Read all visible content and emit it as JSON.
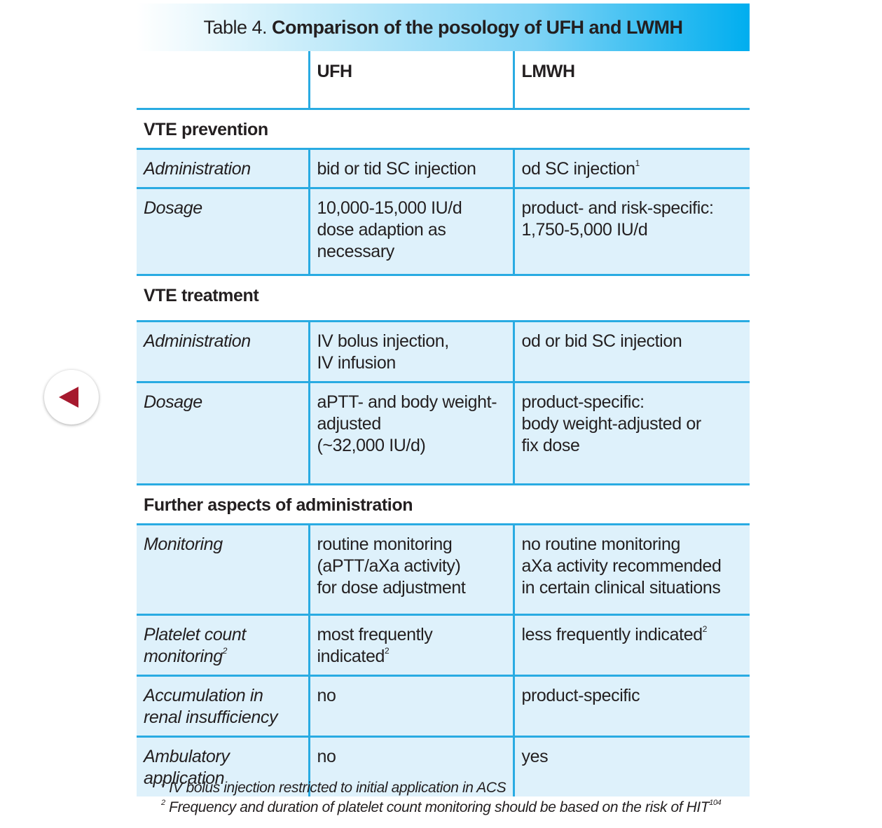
{
  "title": {
    "prefix": "Table 4.",
    "main": "Comparison of the posology of UFH and LWMH"
  },
  "columns": {
    "col1": "",
    "col2": "UFH",
    "col3": "LMWH"
  },
  "sections": {
    "prevention": {
      "heading": "VTE prevention",
      "admin": {
        "label": "Administration",
        "ufh": "bid or tid SC injection",
        "lmwh": "od SC injection",
        "lmwh_sup": "1"
      },
      "dosage": {
        "label": "Dosage",
        "ufh": [
          "10,000-15,000 IU/d",
          "dose adaption as",
          "necessary"
        ],
        "lmwh": [
          "product- and risk-specific:",
          "1,750-5,000 IU/d"
        ]
      }
    },
    "treatment": {
      "heading": "VTE treatment",
      "admin": {
        "label": "Administration",
        "ufh": [
          "IV bolus injection,",
          "IV infusion"
        ],
        "lmwh": "od or bid SC injection"
      },
      "dosage": {
        "label": "Dosage",
        "ufh": [
          "aPTT- and body weight-",
          "adjusted",
          "(~32,000 IU/d)"
        ],
        "lmwh": [
          "product-specific:",
          "body weight-adjusted or",
          "fix dose"
        ]
      }
    },
    "further": {
      "heading": "Further aspects of administration",
      "monitoring": {
        "label": "Monitoring",
        "ufh": [
          "routine monitoring",
          "(aPTT/aXa activity)",
          "for dose adjustment"
        ],
        "lmwh": [
          "no routine monitoring",
          "aXa activity recommended",
          "in certain clinical situations"
        ]
      },
      "platelet": {
        "label": [
          "Platelet count",
          "monitoring"
        ],
        "label_sup": "2",
        "ufh": "most frequently indicated",
        "ufh_sup": "2",
        "lmwh": "less frequently indicated",
        "lmwh_sup": "2"
      },
      "accumulation": {
        "label": [
          "Accumulation in",
          "renal insufficiency"
        ],
        "ufh": "no",
        "lmwh": "product-specific"
      },
      "ambulatory": {
        "label": [
          "Ambulatory",
          "application"
        ],
        "ufh": "no",
        "lmwh": "yes"
      }
    }
  },
  "footnotes": [
    {
      "mark": "1",
      "text": "IV bolus injection restricted to initial application in ACS"
    },
    {
      "mark": "2",
      "text": "Frequency and duration of platelet count monitoring should be based on the risk of HIT",
      "ref": "104"
    }
  ],
  "colors": {
    "accent": "#29abe2",
    "row_fill": "#def1fb",
    "back_arrow": "#a6192e"
  },
  "icons": {
    "back": "back-arrow-icon"
  }
}
